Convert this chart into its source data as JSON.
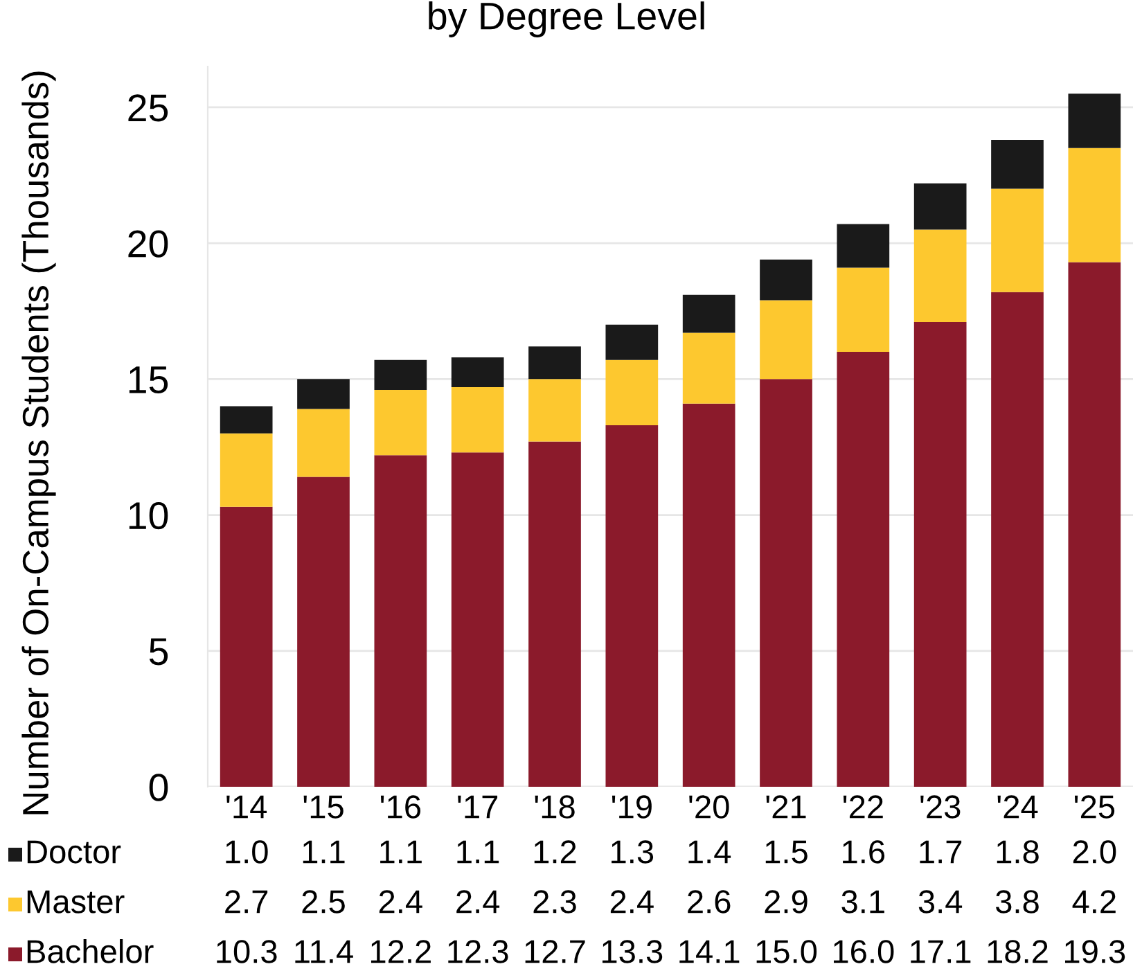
{
  "chart_data": {
    "type": "bar",
    "title": "by Degree Level",
    "ylabel": "Number of On-Campus Students (Thousands)",
    "categories": [
      "'14",
      "'15",
      "'16",
      "'17",
      "'18",
      "'19",
      "'20",
      "'21",
      "'22",
      "'23",
      "'24",
      "'25"
    ],
    "stacked": true,
    "grid": "y",
    "legend": "bottom",
    "ylim": [
      0,
      26.5
    ],
    "yticks": [
      0,
      5,
      10,
      15,
      20,
      25
    ],
    "series": [
      {
        "name": "Bachelor",
        "color": "#8b1a2b",
        "values": [
          10.3,
          11.4,
          12.2,
          12.3,
          12.7,
          13.3,
          14.1,
          15.0,
          16.0,
          17.1,
          18.2,
          19.3
        ],
        "value_labels": [
          "10.3",
          "11.4",
          "12.2",
          "12.3",
          "12.7",
          "13.3",
          "14.1",
          "15.0",
          "16.0",
          "17.1",
          "18.2",
          "19.3"
        ]
      },
      {
        "name": "Master",
        "color": "#fdc82f",
        "values": [
          2.7,
          2.5,
          2.4,
          2.4,
          2.3,
          2.4,
          2.6,
          2.9,
          3.1,
          3.4,
          3.8,
          4.2
        ],
        "value_labels": [
          "2.7",
          "2.5",
          "2.4",
          "2.4",
          "2.3",
          "2.4",
          "2.6",
          "2.9",
          "3.1",
          "3.4",
          "3.8",
          "4.2"
        ]
      },
      {
        "name": "Doctor",
        "color": "#1a1a1a",
        "values": [
          1.0,
          1.1,
          1.1,
          1.1,
          1.2,
          1.3,
          1.4,
          1.5,
          1.6,
          1.7,
          1.8,
          2.0
        ],
        "value_labels": [
          "1.0",
          "1.1",
          "1.1",
          "1.1",
          "1.2",
          "1.3",
          "1.4",
          "1.5",
          "1.6",
          "1.7",
          "1.8",
          "2.0"
        ]
      }
    ]
  }
}
